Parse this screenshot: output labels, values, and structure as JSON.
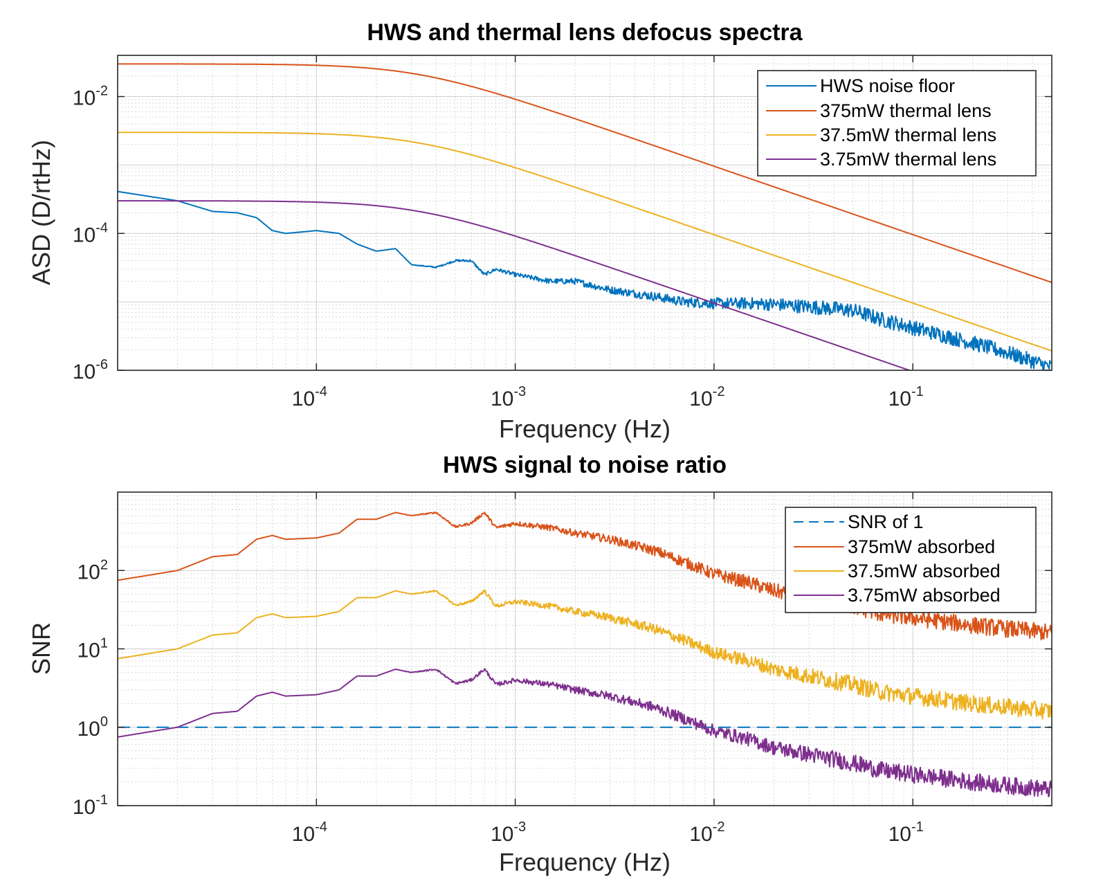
{
  "chart_data": [
    {
      "type": "line",
      "title": "HWS and thermal lens defocus spectra",
      "xlabel": "Frequency (Hz)",
      "ylabel": "ASD (D/rtHz)",
      "xscale": "log",
      "yscale": "log",
      "xlim": [
        1e-05,
        0.5
      ],
      "ylim": [
        1e-06,
        0.04
      ],
      "xticks": [
        {
          "base": "10",
          "exp": "-4"
        },
        {
          "base": "10",
          "exp": "-3"
        },
        {
          "base": "10",
          "exp": "-2"
        },
        {
          "base": "10",
          "exp": "-1"
        }
      ],
      "xtick_values": [
        0.0001,
        0.001,
        0.01,
        0.1
      ],
      "yticks": [
        {
          "base": "10",
          "exp": "-2"
        },
        {
          "base": "10",
          "exp": "-4"
        },
        {
          "base": "10",
          "exp": "-6"
        }
      ],
      "ytick_values": [
        0.01,
        0.0001,
        1e-06
      ],
      "grid": true,
      "legend_position": "top-right",
      "series": [
        {
          "name": "HWS noise floor",
          "color": "#0072BD",
          "x": [
            1e-05,
            2e-05,
            3e-05,
            4e-05,
            5e-05,
            6e-05,
            7e-05,
            0.0001,
            0.00013,
            0.00016,
            0.0002,
            0.00025,
            0.0003,
            0.0004,
            0.0005,
            0.0006,
            0.0007,
            0.0008,
            0.001,
            0.0015,
            0.002,
            0.003,
            0.005,
            0.007,
            0.01,
            0.015,
            0.02,
            0.03,
            0.05,
            0.07,
            0.1,
            0.2,
            0.3,
            0.5
          ],
          "y": [
            0.00041,
            0.0003,
            0.00021,
            0.0002,
            0.00017,
            0.00011,
            0.0001,
            0.00011,
            0.0001,
            7e-05,
            5.5e-05,
            6e-05,
            3.5e-05,
            3.2e-05,
            4e-05,
            4e-05,
            2.5e-05,
            3e-05,
            2.5e-05,
            2e-05,
            2e-05,
            1.5e-05,
            1.2e-05,
            1e-05,
            9.5e-06,
            9.5e-06,
            9.2e-06,
            8.5e-06,
            7.5e-06,
            5.5e-06,
            4.2e-06,
            2.5e-06,
            1.8e-06,
            1.1e-06
          ],
          "noise": true
        },
        {
          "name": "375mW thermal lens",
          "color": "#D95319",
          "model": {
            "amp": 0.03,
            "fc": 0.00032
          }
        },
        {
          "name": "37.5mW thermal lens",
          "color": "#EDB120",
          "model": {
            "amp": 0.003,
            "fc": 0.00032
          }
        },
        {
          "name": "3.75mW thermal lens",
          "color": "#7E2F8E",
          "model": {
            "amp": 0.0003,
            "fc": 0.00032
          }
        }
      ]
    },
    {
      "type": "line",
      "title": "HWS signal to noise ratio",
      "xlabel": "Frequency (Hz)",
      "ylabel": "SNR",
      "xscale": "log",
      "yscale": "log",
      "xlim": [
        1e-05,
        0.5
      ],
      "ylim": [
        0.1,
        1000
      ],
      "xticks": [
        {
          "base": "10",
          "exp": "-4"
        },
        {
          "base": "10",
          "exp": "-3"
        },
        {
          "base": "10",
          "exp": "-2"
        },
        {
          "base": "10",
          "exp": "-1"
        }
      ],
      "xtick_values": [
        0.0001,
        0.001,
        0.01,
        0.1
      ],
      "yticks": [
        {
          "base": "10",
          "exp": "2"
        },
        {
          "base": "10",
          "exp": "1"
        },
        {
          "base": "10",
          "exp": "0"
        },
        {
          "base": "10",
          "exp": "-1"
        }
      ],
      "ytick_values": [
        100,
        10,
        1,
        0.1
      ],
      "grid": true,
      "legend_position": "top-right",
      "series": [
        {
          "name": "SNR of 1",
          "color": "#0072BD",
          "dashed": true,
          "x": [
            1e-05,
            0.5
          ],
          "y": [
            1,
            1
          ]
        },
        {
          "name": "375mW absorbed",
          "color": "#D95319",
          "scale": 100,
          "noise": true
        },
        {
          "name": "37.5mW absorbed",
          "color": "#EDB120",
          "scale": 10,
          "noise": true
        },
        {
          "name": "3.75mW absorbed",
          "color": "#7E2F8E",
          "scale": 1,
          "noise": true
        }
      ],
      "snr_base": {
        "x": [
          1e-05,
          2e-05,
          3e-05,
          4e-05,
          5e-05,
          6e-05,
          7e-05,
          0.0001,
          0.00013,
          0.00016,
          0.0002,
          0.00025,
          0.0003,
          0.0004,
          0.0005,
          0.0006,
          0.0007,
          0.0008,
          0.001,
          0.0015,
          0.002,
          0.003,
          0.005,
          0.007,
          0.01,
          0.015,
          0.02,
          0.03,
          0.05,
          0.07,
          0.1,
          0.2,
          0.3,
          0.5
        ],
        "y": [
          0.75,
          1.0,
          1.5,
          1.6,
          2.5,
          2.8,
          2.5,
          2.6,
          3.0,
          4.5,
          4.5,
          5.5,
          5.0,
          5.5,
          3.6,
          4.0,
          5.5,
          3.5,
          4.0,
          3.5,
          3.0,
          2.5,
          1.8,
          1.3,
          0.9,
          0.7,
          0.55,
          0.45,
          0.35,
          0.28,
          0.25,
          0.2,
          0.18,
          0.16
        ]
      }
    }
  ]
}
